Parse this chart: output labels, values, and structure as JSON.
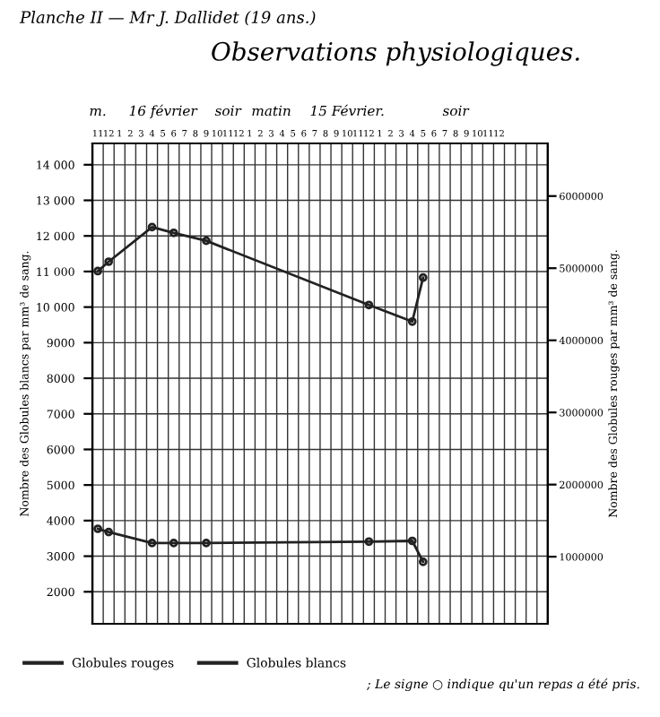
{
  "chart_data": {
    "type": "line",
    "title": "Observations physiologiques.",
    "subtitle": "Planche II — Mr J. Dallidet (19 ans.)",
    "ylabel": "Nombre des Globules blancs par mm³ de sang.",
    "y2label": "Nombre des Globules rouges par mm³ de sang.",
    "annotations": [
      "m.",
      "16 février",
      "soir",
      "matin",
      "15 Février.",
      "soir",
      "; Le signe ○ indique qu'un repas a été pris."
    ],
    "categories": [
      "11",
      "12",
      "1",
      "2",
      "3",
      "4",
      "5",
      "6",
      "7",
      "8",
      "9",
      "10",
      "11",
      "12",
      "1",
      "2",
      "3",
      "4",
      "5",
      "6",
      "7",
      "8",
      "9",
      "10",
      "11",
      "12",
      "1",
      "2",
      "3",
      "4",
      "5",
      "6",
      "7",
      "8",
      "9",
      "10",
      "11",
      "12",
      null,
      null,
      null,
      null
    ],
    "series": [
      {
        "name": "Globules rouges",
        "color": "#222222",
        "axis": "y2",
        "values": [
          4960000,
          5090000,
          null,
          null,
          null,
          5570000,
          null,
          5490000,
          null,
          null,
          5380000,
          null,
          null,
          null,
          null,
          null,
          null,
          null,
          null,
          null,
          null,
          null,
          null,
          null,
          null,
          4490000,
          null,
          null,
          null,
          4260000,
          4870000,
          null,
          null,
          null,
          null,
          null,
          null,
          null,
          null,
          null,
          null,
          null
        ]
      },
      {
        "name": "Globules blancs",
        "color": "#222222",
        "values": [
          3770,
          3680,
          null,
          null,
          null,
          3370,
          null,
          3370,
          null,
          null,
          3370,
          null,
          null,
          null,
          null,
          null,
          null,
          null,
          null,
          null,
          null,
          null,
          null,
          null,
          null,
          3410,
          null,
          null,
          null,
          3430,
          2840,
          null,
          null,
          null,
          null,
          null,
          null,
          null,
          null,
          null,
          null,
          null
        ]
      }
    ],
    "ylim": [
      1100,
      14600
    ],
    "yticks": [
      2000,
      3000,
      4000,
      5000,
      6000,
      7000,
      8000,
      9000,
      {
        "value": 10000,
        "label": "10 000"
      },
      {
        "value": 11000,
        "label": "11 000"
      },
      {
        "value": 12000,
        "label": "12 000"
      },
      {
        "value": 13000,
        "label": "13 000"
      },
      {
        "value": 14000,
        "label": "14 000"
      }
    ],
    "y2lim": [
      70000,
      6730000
    ],
    "y2ticks": [
      1000000,
      2000000,
      3000000,
      4000000,
      5000000,
      6000000
    ],
    "grid": true,
    "legend": "bottom",
    "marker": "circle",
    "line_style": "solid"
  }
}
